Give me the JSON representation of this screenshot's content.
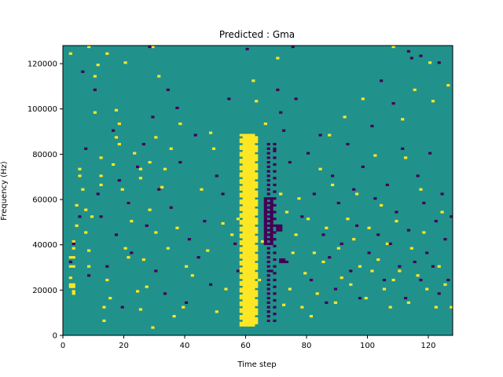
{
  "chart_data": {
    "type": "heatmap",
    "title": "Predicted : Gma",
    "xlabel": "Time step",
    "ylabel": "Frequency (Hz)",
    "xlim": [
      0,
      128
    ],
    "ylim": [
      0,
      128000
    ],
    "xticks": [
      0,
      20,
      40,
      60,
      80,
      100,
      120
    ],
    "yticks": [
      0,
      20000,
      40000,
      60000,
      80000,
      100000,
      120000
    ],
    "colormap": "viridis",
    "colors": {
      "background": "#21918c",
      "high": "#fde725",
      "low": "#440154"
    },
    "grid": false,
    "legend": "none",
    "cells": {
      "high": [
        [
          3,
          18
        ],
        [
          3,
          19
        ],
        [
          2,
          21
        ],
        [
          3,
          21
        ],
        [
          2,
          22
        ],
        [
          3,
          22
        ],
        [
          2,
          25
        ],
        [
          2,
          30
        ],
        [
          3,
          30
        ],
        [
          2,
          34
        ],
        [
          3,
          34
        ],
        [
          3,
          38
        ],
        [
          3,
          41
        ],
        [
          5,
          70
        ],
        [
          5,
          73
        ],
        [
          6,
          64
        ],
        [
          4,
          48
        ],
        [
          4,
          57
        ],
        [
          7,
          45
        ],
        [
          8,
          37
        ],
        [
          8,
          30
        ],
        [
          7,
          55
        ],
        [
          9,
          52
        ],
        [
          10,
          98
        ],
        [
          10,
          114
        ],
        [
          11,
          119
        ],
        [
          12,
          66
        ],
        [
          12,
          70
        ],
        [
          12,
          78
        ],
        [
          13,
          6
        ],
        [
          13,
          12
        ],
        [
          14,
          24
        ],
        [
          15,
          16
        ],
        [
          16,
          75
        ],
        [
          17,
          87
        ],
        [
          17,
          99
        ],
        [
          18,
          84
        ],
        [
          18,
          93
        ],
        [
          19,
          64
        ],
        [
          20,
          38
        ],
        [
          21,
          34
        ],
        [
          21,
          58
        ],
        [
          22,
          50
        ],
        [
          23,
          80
        ],
        [
          24,
          19
        ],
        [
          25,
          11
        ],
        [
          25,
          69
        ],
        [
          25,
          73
        ],
        [
          26,
          33
        ],
        [
          27,
          21
        ],
        [
          28,
          55
        ],
        [
          28,
          76
        ],
        [
          29,
          3
        ],
        [
          30,
          45
        ],
        [
          30,
          87
        ],
        [
          31,
          114
        ],
        [
          32,
          65
        ],
        [
          33,
          73
        ],
        [
          34,
          38
        ],
        [
          35,
          82
        ],
        [
          36,
          8
        ],
        [
          37,
          47
        ],
        [
          38,
          93
        ],
        [
          39,
          12
        ],
        [
          40,
          30
        ],
        [
          42,
          26
        ],
        [
          45,
          64
        ],
        [
          47,
          37
        ],
        [
          48,
          89
        ],
        [
          49,
          82
        ],
        [
          50,
          10
        ],
        [
          52,
          49
        ],
        [
          53,
          20
        ],
        [
          55,
          44
        ],
        [
          57,
          51
        ],
        [
          58,
          70
        ],
        [
          59,
          28
        ],
        [
          61,
          80
        ],
        [
          62,
          8
        ],
        [
          62,
          112
        ],
        [
          63,
          103
        ],
        [
          64,
          24
        ],
        [
          65,
          41
        ],
        [
          66,
          93
        ],
        [
          67,
          6
        ],
        [
          68,
          47
        ],
        [
          69,
          33
        ],
        [
          70,
          122
        ],
        [
          71,
          62
        ],
        [
          72,
          13
        ],
        [
          73,
          54
        ],
        [
          74,
          20
        ],
        [
          75,
          36
        ],
        [
          76,
          44
        ],
        [
          77,
          60
        ],
        [
          78,
          12
        ],
        [
          79,
          27
        ],
        [
          80,
          51
        ],
        [
          81,
          8
        ],
        [
          82,
          36
        ],
        [
          83,
          18
        ],
        [
          84,
          73
        ],
        [
          85,
          32
        ],
        [
          86,
          47
        ],
        [
          87,
          88
        ],
        [
          88,
          66
        ],
        [
          89,
          14
        ],
        [
          90,
          38
        ],
        [
          91,
          25
        ],
        [
          92,
          96
        ],
        [
          93,
          51
        ],
        [
          94,
          22
        ],
        [
          95,
          42
        ],
        [
          96,
          62
        ],
        [
          97,
          30
        ],
        [
          98,
          104
        ],
        [
          99,
          16
        ],
        [
          100,
          47
        ],
        [
          101,
          28
        ],
        [
          102,
          79
        ],
        [
          103,
          33
        ],
        [
          104,
          57
        ],
        [
          105,
          20
        ],
        [
          106,
          40
        ],
        [
          107,
          12
        ],
        [
          108,
          24
        ],
        [
          109,
          50
        ],
        [
          110,
          28
        ],
        [
          111,
          95
        ],
        [
          112,
          78
        ],
        [
          113,
          14
        ],
        [
          114,
          38
        ],
        [
          115,
          108
        ],
        [
          116,
          26
        ],
        [
          117,
          64
        ],
        [
          118,
          45
        ],
        [
          119,
          20
        ],
        [
          120,
          120
        ],
        [
          121,
          103
        ],
        [
          122,
          12
        ],
        [
          123,
          30
        ],
        [
          124,
          54
        ],
        [
          125,
          22
        ],
        [
          126,
          110
        ],
        [
          127,
          12
        ],
        [
          20,
          120
        ],
        [
          14,
          124
        ],
        [
          2,
          124
        ],
        [
          8,
          127
        ],
        [
          29,
          127
        ],
        [
          108,
          127
        ]
      ],
      "high_band": {
        "x": [
          58,
          63
        ],
        "rows": [
          4,
          5,
          6,
          7,
          8,
          9,
          10,
          11,
          12,
          13,
          14,
          15,
          16,
          17,
          18,
          19,
          20,
          21,
          22,
          23,
          24,
          25,
          26,
          27,
          28,
          29,
          30,
          31,
          32,
          33,
          34,
          35,
          36,
          37,
          38,
          39,
          40,
          41,
          42,
          43,
          44,
          45,
          46,
          47,
          48,
          49,
          50,
          51,
          52,
          53,
          54,
          55,
          56,
          57,
          58,
          59,
          60,
          61,
          62,
          63,
          64,
          65,
          66,
          67,
          68,
          69,
          70,
          71,
          72,
          73,
          74,
          75,
          76,
          77,
          78,
          79,
          80,
          81,
          82,
          83,
          84,
          85,
          86,
          87,
          88
        ]
      },
      "low": [
        [
          2,
          32
        ],
        [
          3,
          40
        ],
        [
          5,
          52
        ],
        [
          6,
          116
        ],
        [
          7,
          82
        ],
        [
          8,
          26
        ],
        [
          10,
          108
        ],
        [
          11,
          62
        ],
        [
          12,
          52
        ],
        [
          14,
          30
        ],
        [
          16,
          90
        ],
        [
          17,
          44
        ],
        [
          18,
          68
        ],
        [
          19,
          12
        ],
        [
          21,
          58
        ],
        [
          22,
          36
        ],
        [
          24,
          74
        ],
        [
          26,
          84
        ],
        [
          27,
          48
        ],
        [
          29,
          96
        ],
        [
          30,
          28
        ],
        [
          31,
          64
        ],
        [
          33,
          18
        ],
        [
          34,
          108
        ],
        [
          35,
          56
        ],
        [
          37,
          100
        ],
        [
          38,
          76
        ],
        [
          40,
          14
        ],
        [
          41,
          42
        ],
        [
          43,
          88
        ],
        [
          44,
          34
        ],
        [
          46,
          50
        ],
        [
          48,
          22
        ],
        [
          50,
          70
        ],
        [
          52,
          62
        ],
        [
          54,
          104
        ],
        [
          56,
          40
        ],
        [
          57,
          28
        ],
        [
          66,
          40
        ],
        [
          67,
          10
        ],
        [
          68,
          28
        ],
        [
          69,
          82
        ],
        [
          70,
          108
        ],
        [
          71,
          98
        ],
        [
          72,
          90
        ],
        [
          73,
          32
        ],
        [
          74,
          76
        ],
        [
          76,
          104
        ],
        [
          78,
          52
        ],
        [
          80,
          80
        ],
        [
          81,
          24
        ],
        [
          82,
          62
        ],
        [
          84,
          88
        ],
        [
          85,
          44
        ],
        [
          86,
          14
        ],
        [
          87,
          34
        ],
        [
          88,
          70
        ],
        [
          89,
          20
        ],
        [
          90,
          58
        ],
        [
          91,
          40
        ],
        [
          93,
          84
        ],
        [
          94,
          28
        ],
        [
          95,
          64
        ],
        [
          96,
          48
        ],
        [
          97,
          16
        ],
        [
          98,
          74
        ],
        [
          100,
          36
        ],
        [
          101,
          92
        ],
        [
          102,
          60
        ],
        [
          103,
          44
        ],
        [
          104,
          112
        ],
        [
          105,
          24
        ],
        [
          106,
          66
        ],
        [
          107,
          40
        ],
        [
          108,
          102
        ],
        [
          109,
          54
        ],
        [
          110,
          30
        ],
        [
          111,
          82
        ],
        [
          112,
          16
        ],
        [
          113,
          46
        ],
        [
          114,
          122
        ],
        [
          115,
          32
        ],
        [
          116,
          70
        ],
        [
          117,
          24
        ],
        [
          118,
          58
        ],
        [
          119,
          36
        ],
        [
          120,
          80
        ],
        [
          121,
          30
        ],
        [
          122,
          50
        ],
        [
          123,
          18
        ],
        [
          124,
          62
        ],
        [
          125,
          42
        ],
        [
          126,
          24
        ],
        [
          127,
          52
        ],
        [
          28,
          127
        ],
        [
          60,
          126
        ],
        [
          75,
          127
        ],
        [
          113,
          125
        ],
        [
          123,
          120
        ],
        [
          117,
          123
        ]
      ],
      "low_band": {
        "x": [
          66,
          70
        ],
        "rows": [
          5,
          6,
          7,
          8,
          9,
          10,
          11,
          12,
          13,
          14,
          15,
          16,
          17,
          18,
          19,
          20,
          21,
          22,
          23,
          24,
          25,
          26,
          27,
          28,
          29,
          30,
          31,
          32,
          33,
          34,
          35,
          36,
          37,
          38,
          39,
          40,
          41,
          42,
          43,
          44,
          45,
          46,
          47,
          48,
          49,
          50,
          51,
          52,
          53,
          54,
          55,
          56,
          57,
          58,
          59,
          60,
          61,
          62,
          63,
          64,
          65,
          66,
          67,
          68,
          69,
          70,
          71,
          72,
          73,
          74,
          75,
          76,
          77,
          78,
          79,
          80,
          81,
          82,
          83,
          84
        ]
      }
    }
  }
}
